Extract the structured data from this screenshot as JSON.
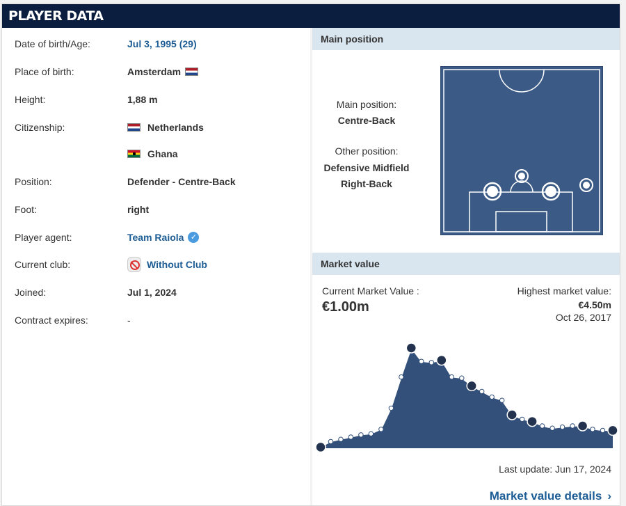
{
  "header": {
    "title": "PLAYER DATA"
  },
  "info": [
    {
      "label": "Date of birth/Age:",
      "value": "Jul 3, 1995 (29)",
      "link": true
    },
    {
      "label": "Place of birth:",
      "value": "Amsterdam",
      "flag": "nl"
    },
    {
      "label": "Height:",
      "value": "1,88 m"
    },
    {
      "label": "Citizenship:",
      "value": "Netherlands",
      "flag_before": "nl"
    },
    {
      "label": "",
      "value": "Ghana",
      "flag_before": "gh"
    },
    {
      "label": "Position:",
      "value": "Defender - Centre-Back"
    },
    {
      "label": "Foot:",
      "value": "right"
    },
    {
      "label": "Player agent:",
      "value": "Team Raiola",
      "link": true,
      "verified": true
    },
    {
      "label": "Current club:",
      "value": "Without Club",
      "link": true,
      "club_icon": "no-club-icon"
    },
    {
      "label": "Joined:",
      "value": "Jul 1, 2024"
    },
    {
      "label": "Contract expires:",
      "value": "-"
    }
  ],
  "position": {
    "title": "Main position",
    "main_label": "Main position:",
    "main_value": "Centre-Back",
    "other_label": "Other position:",
    "other_values": [
      "Defensive Midfield",
      "Right-Back"
    ]
  },
  "market": {
    "title": "Market value",
    "current_label": "Current Market Value :",
    "current_value": "€1.00m",
    "highest_label": "Highest market value:",
    "highest_value": "€4.50m",
    "highest_date": "Oct 26, 2017",
    "last_update": "Last update: Jun 17, 2024",
    "details_link": "Market value details"
  },
  "colors": {
    "header": "#0b1e3f",
    "link": "#1d5d95",
    "pitch": "#3c5a86",
    "section": "#d9e6f0"
  },
  "chart_data": {
    "type": "area",
    "title": "",
    "xlabel": "",
    "ylabel": "",
    "ylim": [
      0,
      4.5
    ],
    "values": [
      0.05,
      0.3,
      0.4,
      0.5,
      0.6,
      0.65,
      0.85,
      1.8,
      3.2,
      4.5,
      3.9,
      3.85,
      3.95,
      3.2,
      3.15,
      2.8,
      2.55,
      2.3,
      2.15,
      1.5,
      1.3,
      1.2,
      1.0,
      0.9,
      0.95,
      1.0,
      1.0,
      0.85,
      0.8,
      0.8
    ],
    "club_markers": [
      0,
      9,
      12,
      15,
      19,
      21,
      26,
      29
    ]
  }
}
